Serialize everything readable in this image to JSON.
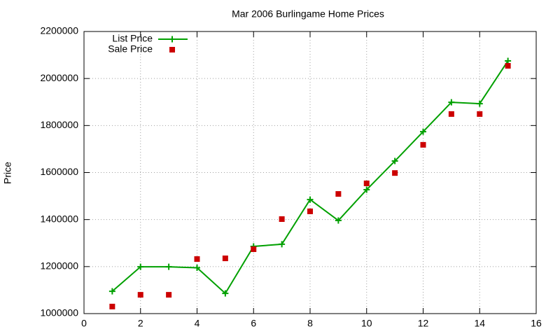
{
  "chart_data": {
    "type": "line",
    "title": "Mar 2006 Burlingame Home Prices",
    "y_label": "Price",
    "x": [
      1,
      2,
      3,
      4,
      5,
      6,
      7,
      8,
      9,
      10,
      11,
      12,
      13,
      14,
      15
    ],
    "series": [
      {
        "name": "List Price",
        "color": "#00a000",
        "line": true,
        "marker": "plus",
        "values": [
          1095000,
          1199000,
          1199000,
          1195000,
          1086000,
          1286000,
          1295000,
          1485000,
          1396000,
          1527000,
          1649000,
          1774000,
          1899000,
          1893000,
          2075000
        ]
      },
      {
        "name": "Sale Price",
        "color": "#cc0000",
        "line": false,
        "marker": "square",
        "values": [
          1030000,
          1080000,
          1080000,
          1232000,
          1235000,
          1274000,
          1402000,
          1435000,
          1509000,
          1554000,
          1598000,
          1718000,
          1849000,
          1849000,
          2054000
        ]
      }
    ],
    "xlim": [
      0,
      16
    ],
    "xticks": [
      0,
      2,
      4,
      6,
      8,
      10,
      12,
      14,
      16
    ],
    "ylim": [
      1000000,
      2200000
    ],
    "yticks": [
      1000000,
      1200000,
      1400000,
      1600000,
      1800000,
      2000000,
      2200000
    ],
    "grid": true,
    "legend": "top-left"
  }
}
